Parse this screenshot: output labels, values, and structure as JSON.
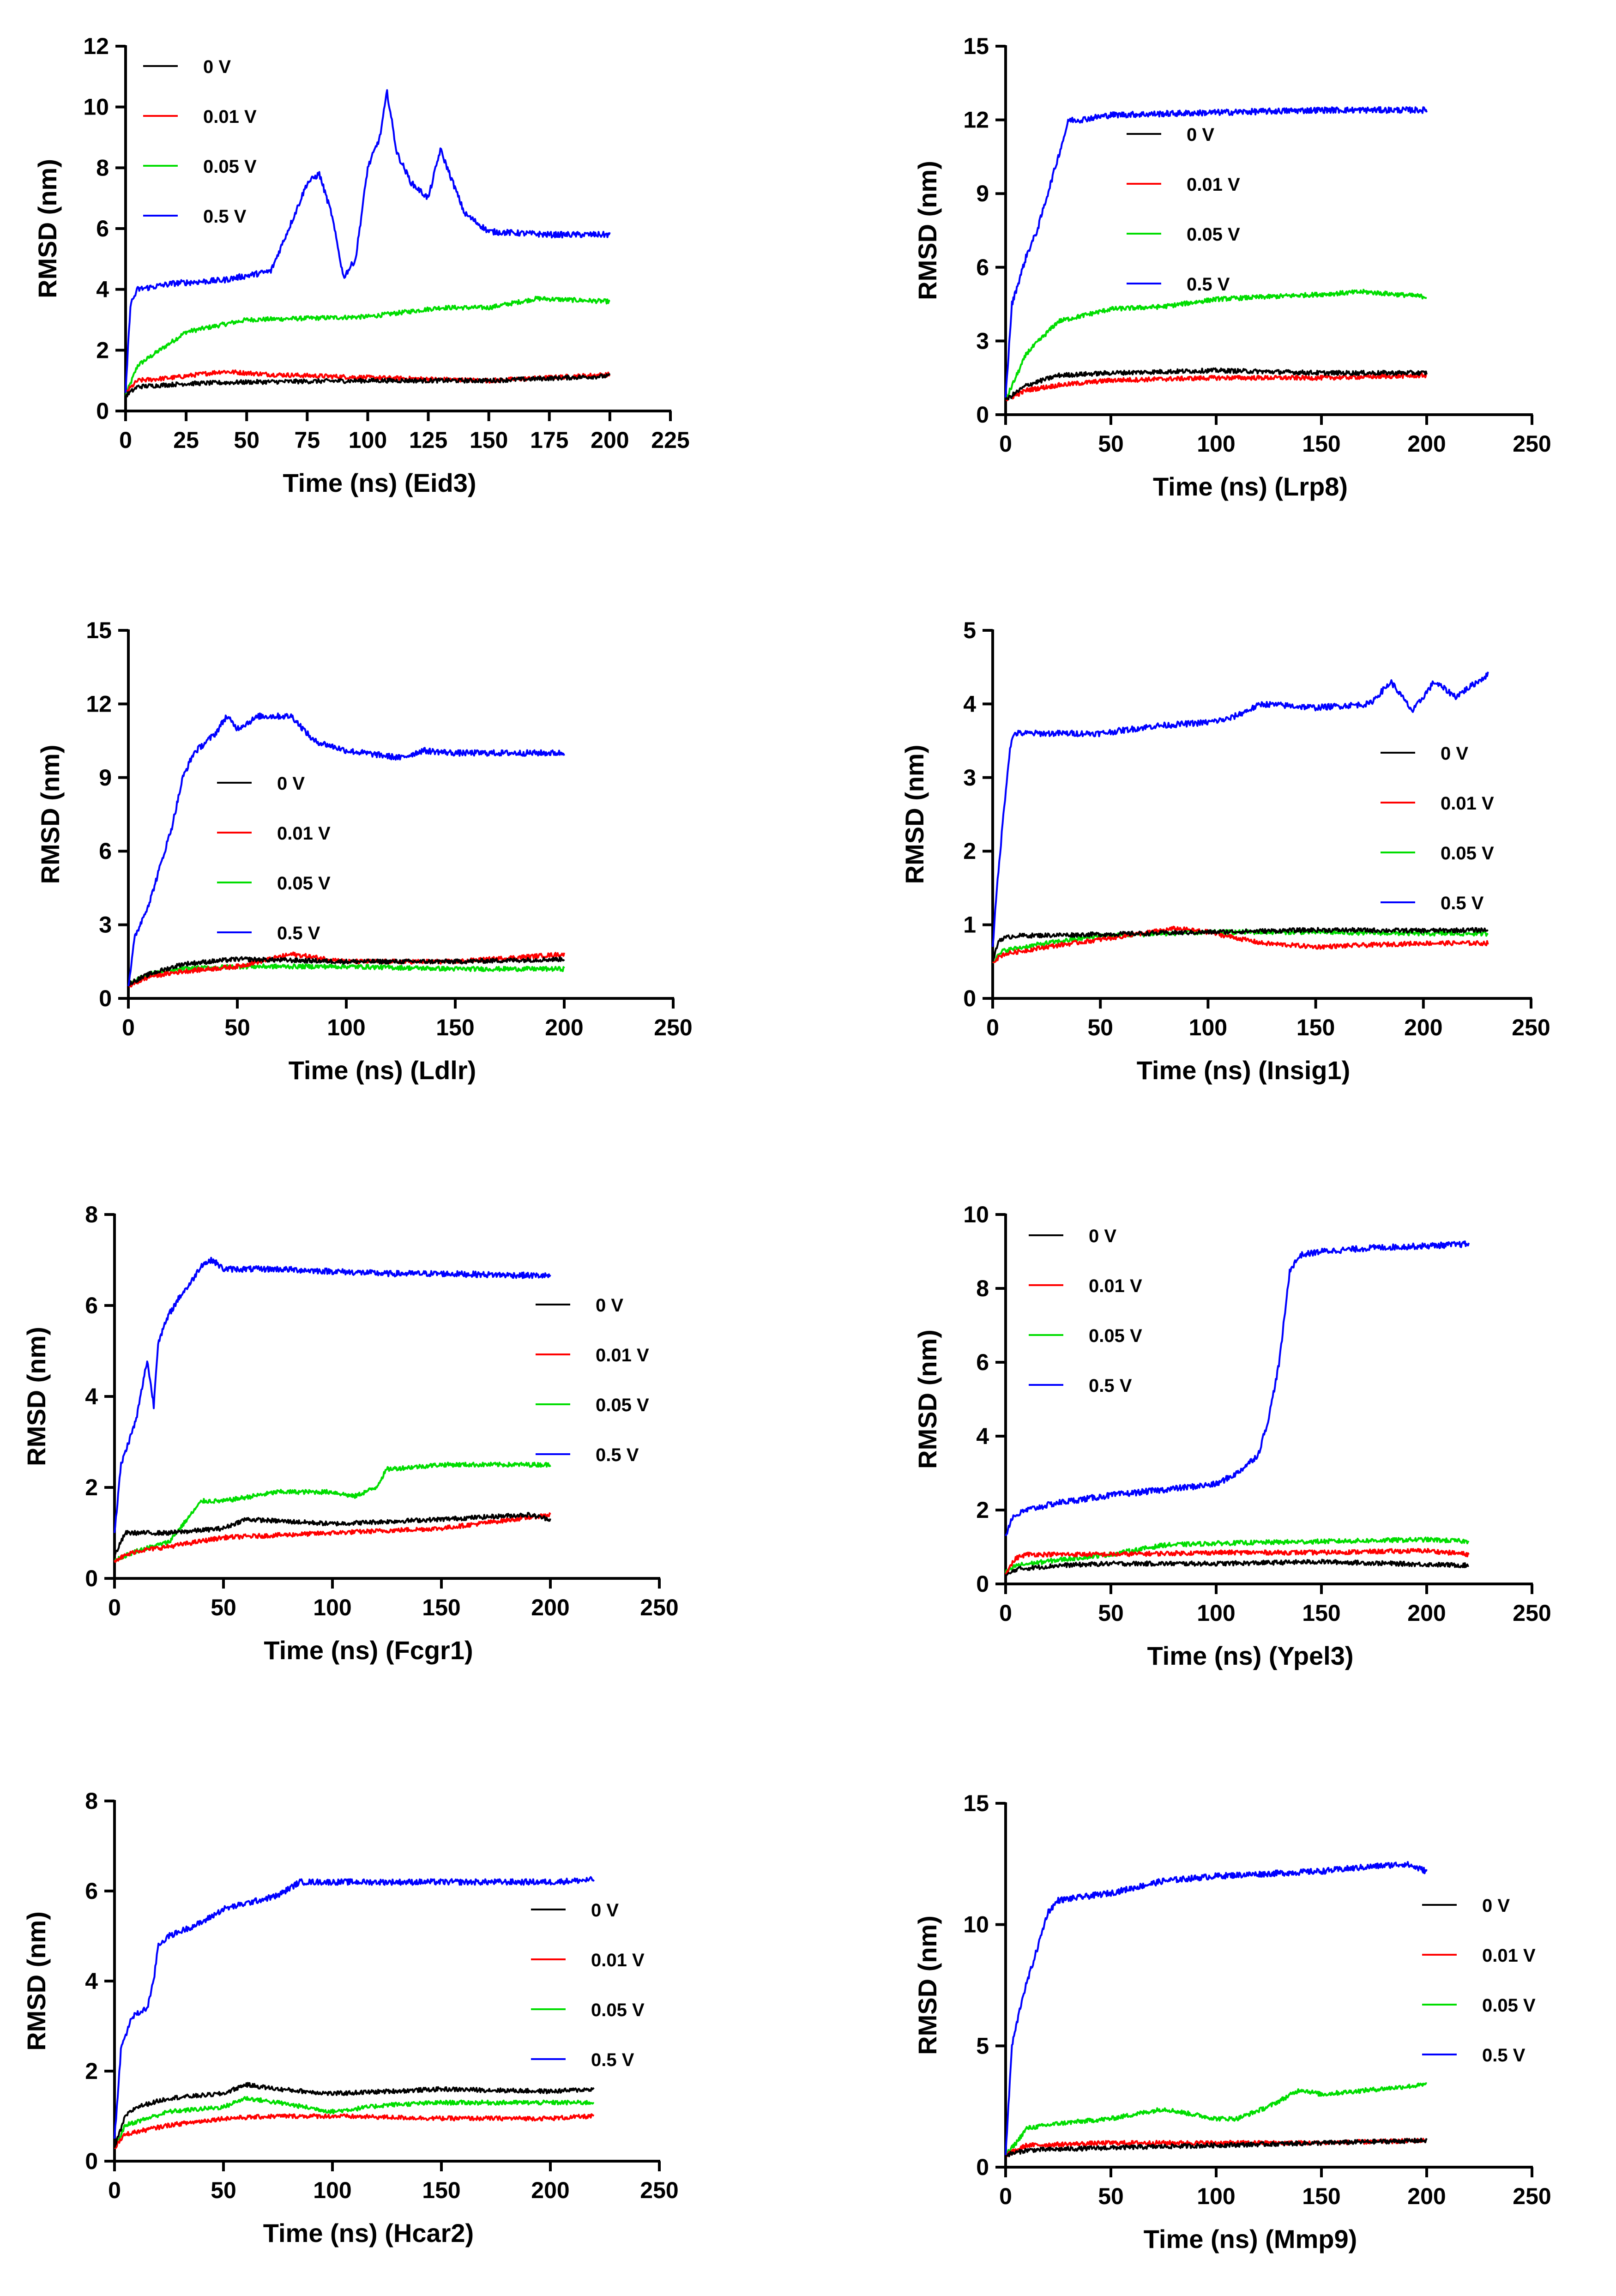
{
  "colors": {
    "0 V": "#000000",
    "0.01 V": "#ff0000",
    "0.05 V": "#00dd00",
    "0.5 V": "#0000ff"
  },
  "chart_data": [
    {
      "type": "line",
      "xlabel": "Time (ns) (Eid3)",
      "ylabel": "RMSD (nm)",
      "xlim": [
        0,
        225
      ],
      "ylim": [
        0,
        12
      ],
      "xticks": [
        0,
        25,
        50,
        75,
        100,
        125,
        150,
        175,
        200,
        225
      ],
      "yticks": [
        0,
        2,
        4,
        6,
        8,
        10,
        12
      ],
      "legend": [
        "0 V",
        "0.01 V",
        "0.05 V",
        "0.5 V"
      ],
      "series": [
        {
          "name": "0 V",
          "x": [
            0,
            5,
            25,
            50,
            100,
            150,
            200
          ],
          "y": [
            0.5,
            0.8,
            0.9,
            0.95,
            1.0,
            1.0,
            1.15
          ]
        },
        {
          "name": "0.01 V",
          "x": [
            0,
            5,
            20,
            40,
            60,
            100,
            150,
            200
          ],
          "y": [
            0.6,
            1.0,
            1.1,
            1.3,
            1.2,
            1.1,
            1.0,
            1.2
          ]
        },
        {
          "name": "0.05 V",
          "x": [
            0,
            5,
            25,
            50,
            100,
            130,
            150,
            170,
            200
          ],
          "y": [
            0.5,
            1.5,
            2.6,
            3.0,
            3.1,
            3.4,
            3.4,
            3.7,
            3.6
          ]
        },
        {
          "name": "0.5 V",
          "x": [
            0,
            2,
            5,
            20,
            40,
            60,
            70,
            75,
            80,
            85,
            90,
            95,
            100,
            105,
            108,
            112,
            118,
            125,
            130,
            140,
            150,
            175,
            200
          ],
          "y": [
            0.6,
            3.5,
            4.0,
            4.2,
            4.3,
            4.6,
            6.5,
            7.5,
            7.8,
            6.5,
            4.4,
            5.0,
            8.0,
            9.0,
            10.5,
            8.5,
            7.5,
            7.0,
            8.6,
            6.5,
            5.9,
            5.8,
            5.8
          ]
        }
      ]
    },
    {
      "type": "line",
      "xlabel": "Time (ns) (Lrp8)",
      "ylabel": "RMSD (nm)",
      "xlim": [
        0,
        250
      ],
      "ylim": [
        0,
        15
      ],
      "xticks": [
        0,
        50,
        100,
        150,
        200,
        250
      ],
      "yticks": [
        0,
        3,
        6,
        9,
        12,
        15
      ],
      "legend": [
        "0 V",
        "0.01 V",
        "0.05 V",
        "0.5 V"
      ],
      "series": [
        {
          "name": "0 V",
          "x": [
            0,
            10,
            25,
            50,
            100,
            150,
            200
          ],
          "y": [
            0.6,
            1.2,
            1.6,
            1.7,
            1.8,
            1.7,
            1.7
          ]
        },
        {
          "name": "0.01 V",
          "x": [
            0,
            10,
            25,
            50,
            100,
            150,
            200
          ],
          "y": [
            0.6,
            1.0,
            1.2,
            1.4,
            1.5,
            1.5,
            1.6
          ]
        },
        {
          "name": "0.05 V",
          "x": [
            0,
            10,
            25,
            50,
            75,
            100,
            150,
            170,
            200
          ],
          "y": [
            0.6,
            2.5,
            3.8,
            4.3,
            4.4,
            4.7,
            4.9,
            5.0,
            4.8
          ]
        },
        {
          "name": "0.5 V",
          "x": [
            0,
            3,
            10,
            15,
            20,
            25,
            30,
            35,
            50,
            100,
            150,
            200
          ],
          "y": [
            0.7,
            4.5,
            6.5,
            7.5,
            9.0,
            10.5,
            12.0,
            12.0,
            12.2,
            12.3,
            12.4,
            12.4
          ]
        }
      ]
    },
    {
      "type": "line",
      "xlabel": "Time (ns) (Ldlr)",
      "ylabel": "RMSD (nm)",
      "xlim": [
        0,
        250
      ],
      "ylim": [
        0,
        15
      ],
      "xticks": [
        0,
        50,
        100,
        150,
        200,
        250
      ],
      "yticks": [
        0,
        3,
        6,
        9,
        12,
        15
      ],
      "legend": [
        "0 V",
        "0.01 V",
        "0.05 V",
        "0.5 V"
      ],
      "series": [
        {
          "name": "0 V",
          "x": [
            0,
            10,
            25,
            50,
            100,
            150,
            200
          ],
          "y": [
            0.6,
            1.0,
            1.4,
            1.6,
            1.5,
            1.5,
            1.6
          ]
        },
        {
          "name": "0.01 V",
          "x": [
            0,
            10,
            25,
            50,
            75,
            100,
            150,
            200
          ],
          "y": [
            0.5,
            0.9,
            1.1,
            1.3,
            1.8,
            1.5,
            1.5,
            1.8
          ]
        },
        {
          "name": "0.05 V",
          "x": [
            0,
            10,
            25,
            50,
            100,
            150,
            200
          ],
          "y": [
            0.6,
            1.0,
            1.2,
            1.3,
            1.3,
            1.2,
            1.2
          ]
        },
        {
          "name": "0.5 V",
          "x": [
            0,
            3,
            10,
            20,
            25,
            30,
            40,
            45,
            50,
            60,
            75,
            85,
            100,
            125,
            135,
            150,
            200
          ],
          "y": [
            0.5,
            2.5,
            4.0,
            7.0,
            9.0,
            10.0,
            10.8,
            11.5,
            11.0,
            11.5,
            11.5,
            10.5,
            10.1,
            9.8,
            10.1,
            10.0,
            10.0
          ]
        }
      ]
    },
    {
      "type": "line",
      "xlabel": "Time (ns) (Insig1)",
      "ylabel": "RMSD (nm)",
      "xlim": [
        0,
        250
      ],
      "ylim": [
        0,
        5
      ],
      "xticks": [
        0,
        50,
        100,
        150,
        200,
        250
      ],
      "yticks": [
        0,
        1,
        2,
        3,
        4,
        5
      ],
      "legend": [
        "0 V",
        "0.01 V",
        "0.05 V",
        "0.5 V"
      ],
      "series": [
        {
          "name": "0 V",
          "x": [
            0,
            3,
            10,
            50,
            100,
            150,
            200,
            230
          ],
          "y": [
            0.5,
            0.8,
            0.85,
            0.87,
            0.9,
            0.93,
            0.92,
            0.93
          ]
        },
        {
          "name": "0.01 V",
          "x": [
            0,
            5,
            25,
            50,
            85,
            100,
            125,
            150,
            200,
            230
          ],
          "y": [
            0.5,
            0.6,
            0.7,
            0.8,
            0.95,
            0.9,
            0.75,
            0.7,
            0.75,
            0.75
          ]
        },
        {
          "name": "0.05 V",
          "x": [
            0,
            5,
            25,
            50,
            100,
            150,
            200,
            230
          ],
          "y": [
            0.5,
            0.65,
            0.75,
            0.85,
            0.9,
            0.9,
            0.88,
            0.88
          ]
        },
        {
          "name": "0.5 V",
          "x": [
            0,
            2,
            5,
            8,
            10,
            25,
            50,
            75,
            100,
            110,
            125,
            150,
            175,
            185,
            195,
            205,
            215,
            230
          ],
          "y": [
            0.7,
            1.5,
            2.5,
            3.4,
            3.6,
            3.6,
            3.6,
            3.7,
            3.75,
            3.8,
            4.0,
            3.95,
            4.0,
            4.3,
            3.9,
            4.3,
            4.1,
            4.4
          ]
        }
      ]
    },
    {
      "type": "line",
      "xlabel": "Time (ns) (Fcgr1)",
      "ylabel": "RMSD (nm)",
      "xlim": [
        0,
        250
      ],
      "ylim": [
        0,
        8
      ],
      "xticks": [
        0,
        50,
        100,
        150,
        200,
        250
      ],
      "yticks": [
        0,
        2,
        4,
        6,
        8
      ],
      "legend": [
        "0 V",
        "0.01 V",
        "0.05 V",
        "0.5 V"
      ],
      "series": [
        {
          "name": "0 V",
          "x": [
            0,
            5,
            25,
            50,
            60,
            100,
            150,
            190,
            200
          ],
          "y": [
            0.5,
            1.0,
            1.0,
            1.1,
            1.3,
            1.2,
            1.3,
            1.4,
            1.3
          ]
        },
        {
          "name": "0.01 V",
          "x": [
            0,
            10,
            25,
            50,
            100,
            150,
            200
          ],
          "y": [
            0.4,
            0.6,
            0.7,
            0.9,
            1.0,
            1.1,
            1.4
          ]
        },
        {
          "name": "0.05 V",
          "x": [
            0,
            10,
            25,
            30,
            40,
            50,
            75,
            100,
            110,
            120,
            125,
            150,
            200
          ],
          "y": [
            0.4,
            0.6,
            0.8,
            1.1,
            1.7,
            1.7,
            1.9,
            1.9,
            1.8,
            2.0,
            2.4,
            2.5,
            2.5
          ]
        },
        {
          "name": "0.5 V",
          "x": [
            0,
            3,
            10,
            15,
            18,
            20,
            25,
            30,
            35,
            40,
            45,
            50,
            75,
            100,
            125,
            150,
            200
          ],
          "y": [
            1.0,
            2.5,
            3.5,
            4.8,
            3.8,
            5.2,
            5.8,
            6.2,
            6.5,
            6.9,
            7.0,
            6.8,
            6.8,
            6.75,
            6.7,
            6.7,
            6.65
          ]
        }
      ]
    },
    {
      "type": "line",
      "xlabel": "Time (ns) (Ypel3)",
      "ylabel": "RMSD (nm)",
      "xlim": [
        0,
        250
      ],
      "ylim": [
        0,
        10
      ],
      "xticks": [
        0,
        50,
        100,
        150,
        200,
        250
      ],
      "yticks": [
        0,
        2,
        4,
        6,
        8,
        10
      ],
      "legend": [
        "0 V",
        "0.01 V",
        "0.05 V",
        "0.5 V"
      ],
      "series": [
        {
          "name": "0 V",
          "x": [
            0,
            5,
            25,
            50,
            100,
            150,
            220
          ],
          "y": [
            0.2,
            0.4,
            0.5,
            0.55,
            0.55,
            0.6,
            0.5
          ]
        },
        {
          "name": "0.01 V",
          "x": [
            0,
            5,
            10,
            50,
            100,
            150,
            200,
            220
          ],
          "y": [
            0.3,
            0.7,
            0.8,
            0.8,
            0.85,
            0.85,
            0.9,
            0.8
          ]
        },
        {
          "name": "0.05 V",
          "x": [
            0,
            5,
            25,
            50,
            75,
            100,
            150,
            200,
            220
          ],
          "y": [
            0.3,
            0.5,
            0.65,
            0.8,
            1.05,
            1.1,
            1.15,
            1.2,
            1.15
          ]
        },
        {
          "name": "0.5 V",
          "x": [
            0,
            3,
            10,
            25,
            50,
            75,
            100,
            110,
            120,
            125,
            130,
            135,
            140,
            150,
            175,
            200,
            220
          ],
          "y": [
            1.3,
            1.8,
            2.0,
            2.2,
            2.4,
            2.55,
            2.7,
            3.0,
            3.5,
            4.5,
            6.0,
            8.5,
            8.9,
            9.0,
            9.1,
            9.15,
            9.2
          ]
        }
      ]
    },
    {
      "type": "line",
      "xlabel": "Time (ns) (Hcar2)",
      "ylabel": "RMSD (nm)",
      "xlim": [
        0,
        250
      ],
      "ylim": [
        0,
        8
      ],
      "xticks": [
        0,
        50,
        100,
        150,
        200,
        250
      ],
      "yticks": [
        0,
        2,
        4,
        6,
        8
      ],
      "legend": [
        "0 V",
        "0.01 V",
        "0.05 V",
        "0.5 V"
      ],
      "series": [
        {
          "name": "0 V",
          "x": [
            0,
            5,
            10,
            25,
            50,
            60,
            75,
            100,
            150,
            200,
            220
          ],
          "y": [
            0.3,
            1.0,
            1.2,
            1.4,
            1.5,
            1.7,
            1.6,
            1.5,
            1.6,
            1.55,
            1.6
          ]
        },
        {
          "name": "0.01 V",
          "x": [
            0,
            5,
            25,
            50,
            75,
            100,
            150,
            200,
            220
          ],
          "y": [
            0.3,
            0.6,
            0.8,
            0.95,
            1.0,
            1.0,
            0.95,
            0.95,
            1.0
          ]
        },
        {
          "name": "0.05 V",
          "x": [
            0,
            5,
            25,
            50,
            60,
            75,
            100,
            125,
            150,
            200,
            220
          ],
          "y": [
            0.3,
            0.8,
            1.1,
            1.2,
            1.4,
            1.3,
            1.1,
            1.25,
            1.3,
            1.3,
            1.3
          ]
        },
        {
          "name": "0.5 V",
          "x": [
            0,
            3,
            8,
            15,
            18,
            20,
            25,
            40,
            50,
            75,
            85,
            100,
            150,
            200,
            220
          ],
          "y": [
            0.5,
            2.5,
            3.2,
            3.4,
            4.0,
            4.8,
            5.0,
            5.3,
            5.6,
            5.9,
            6.2,
            6.2,
            6.2,
            6.2,
            6.25
          ]
        }
      ]
    },
    {
      "type": "line",
      "xlabel": "Time (ns) (Mmp9)",
      "ylabel": "RMSD (nm)",
      "xlim": [
        0,
        250
      ],
      "ylim": [
        0,
        15
      ],
      "xticks": [
        0,
        50,
        100,
        150,
        200,
        250
      ],
      "yticks": [
        0,
        5,
        10,
        15
      ],
      "legend": [
        "0 V",
        "0.01 V",
        "0.05 V",
        "0.5 V"
      ],
      "series": [
        {
          "name": "0 V",
          "x": [
            0,
            10,
            50,
            100,
            150,
            200
          ],
          "y": [
            0.5,
            0.7,
            0.8,
            0.9,
            1.0,
            1.1
          ]
        },
        {
          "name": "0.01 V",
          "x": [
            0,
            10,
            50,
            100,
            150,
            200
          ],
          "y": [
            0.5,
            0.9,
            1.0,
            1.0,
            1.0,
            1.1
          ]
        },
        {
          "name": "0.05 V",
          "x": [
            0,
            5,
            10,
            25,
            50,
            75,
            100,
            110,
            125,
            140,
            150,
            175,
            200
          ],
          "y": [
            0.5,
            1.0,
            1.6,
            1.8,
            2.0,
            2.4,
            2.0,
            2.0,
            2.5,
            3.2,
            3.0,
            3.2,
            3.4
          ]
        },
        {
          "name": "0.5 V",
          "x": [
            0,
            3,
            8,
            15,
            20,
            25,
            50,
            75,
            100,
            125,
            150,
            175,
            190,
            200
          ],
          "y": [
            0.5,
            5.0,
            7.0,
            9.0,
            10.5,
            11.0,
            11.3,
            11.8,
            12.0,
            12.1,
            12.2,
            12.4,
            12.5,
            12.2
          ]
        }
      ]
    }
  ]
}
